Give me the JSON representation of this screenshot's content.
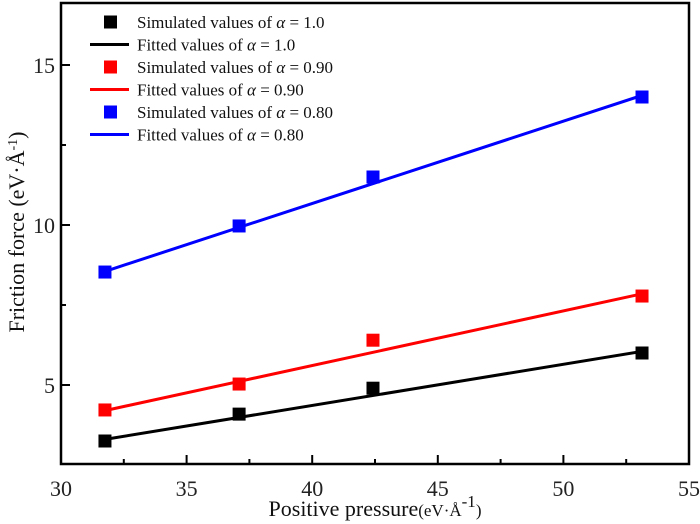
{
  "chart_data": {
    "type": "scatter",
    "title": "",
    "xlabel": "Positive pressure",
    "xlabel_unit": "(eV·Å",
    "xlabel_unit_sup": "-1",
    "xlabel_unit_close": ")",
    "ylabel": "Friction force (eV·Å",
    "ylabel_sup": "-1",
    "ylabel_close": ")",
    "xlim": [
      30,
      55
    ],
    "ylim": [
      2.5,
      17
    ],
    "x_ticks": [
      30,
      35,
      40,
      45,
      50,
      55
    ],
    "x_tick_labels": [
      "30",
      "35",
      "40",
      "45",
      "50",
      "55"
    ],
    "x_minor_ticks": [
      32.5,
      37.5,
      42.5,
      47.5,
      52.5
    ],
    "y_ticks": [
      5,
      10,
      15
    ],
    "y_tick_labels": [
      "5",
      "10",
      "15"
    ],
    "y_minor_ticks": [
      7.5,
      12.5
    ],
    "grid": false,
    "legend_position": "top-left",
    "x": [
      31.75,
      37.09,
      42.42,
      53.13
    ],
    "series": [
      {
        "name": "Simulated values of α = 1.0",
        "kind": "markers",
        "color": "#000000",
        "values": [
          3.25,
          4.09,
          4.9,
          6.0
        ]
      },
      {
        "name": "Fitted values of α = 1.0",
        "kind": "line",
        "color": "#000000",
        "x": [
          31.75,
          53.13
        ],
        "values": [
          3.3,
          6.05
        ]
      },
      {
        "name": "Simulated values of α = 0.90",
        "kind": "markers",
        "color": "#ff0000",
        "values": [
          4.22,
          5.03,
          6.4,
          7.78
        ]
      },
      {
        "name": "Fitted values of α = 0.90",
        "kind": "line",
        "color": "#ff0000",
        "x": [
          31.75,
          53.13
        ],
        "values": [
          4.2,
          7.85
        ]
      },
      {
        "name": "Simulated values of α = 0.80",
        "kind": "markers",
        "color": "#0000ff",
        "values": [
          8.53,
          9.97,
          11.5,
          14.0
        ]
      },
      {
        "name": "Fitted values of α = 0.80",
        "kind": "line",
        "color": "#0000ff",
        "x": [
          31.75,
          53.13
        ],
        "values": [
          8.55,
          14.05
        ]
      }
    ],
    "legend": [
      {
        "label_prefix": "Simulated values of ",
        "symbol": "α",
        "label_suffix": " = 1.0",
        "kind": "marker",
        "color": "#000000"
      },
      {
        "label_prefix": "Fitted values of ",
        "symbol": "α",
        "label_suffix": " = 1.0",
        "kind": "line",
        "color": "#000000"
      },
      {
        "label_prefix": "Simulated values of ",
        "symbol": "α",
        "label_suffix": " = 0.90",
        "kind": "marker",
        "color": "#ff0000"
      },
      {
        "label_prefix": "Fitted values of ",
        "symbol": "α",
        "label_suffix": " = 0.90",
        "kind": "line",
        "color": "#ff0000"
      },
      {
        "label_prefix": "Simulated values of ",
        "symbol": "α",
        "label_suffix": " = 0.80",
        "kind": "marker",
        "color": "#0000ff"
      },
      {
        "label_prefix": "Fitted values of ",
        "symbol": "α",
        "label_suffix": " = 0.80",
        "kind": "line",
        "color": "#0000ff"
      }
    ]
  }
}
